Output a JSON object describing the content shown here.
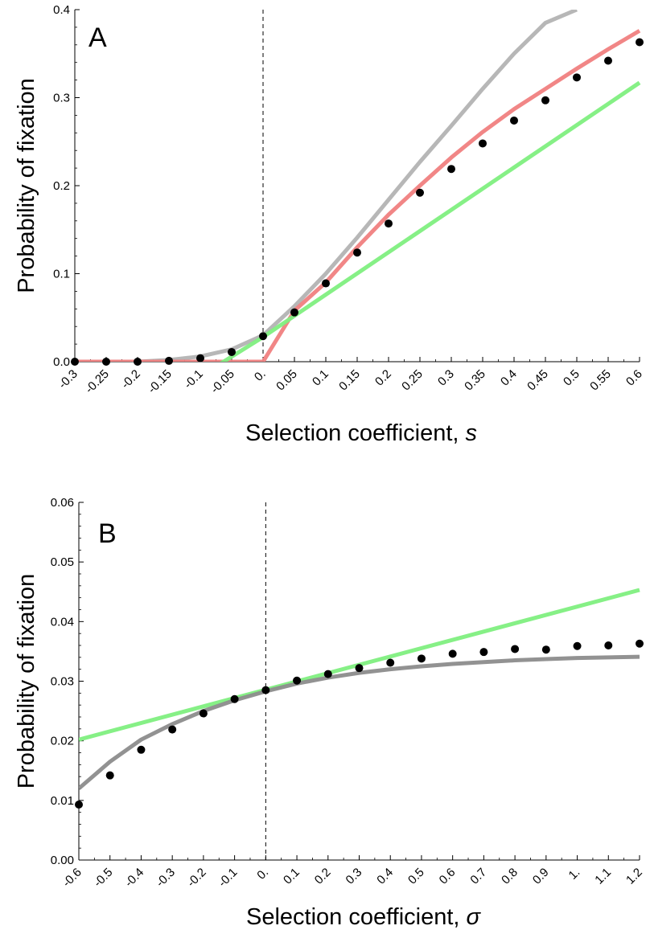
{
  "chart_data": [
    {
      "type": "line",
      "panel_label": "A",
      "xlabel": "Selection coefficient, ",
      "xlabel_var": "s",
      "ylabel": "Probability of fixation",
      "xlim": [
        -0.3,
        0.6
      ],
      "ylim": [
        0.0,
        0.4
      ],
      "grid": false,
      "x_ticks": [
        -0.3,
        -0.25,
        -0.2,
        -0.15,
        -0.1,
        -0.05,
        0.0,
        0.05,
        0.1,
        0.15,
        0.2,
        0.25,
        0.3,
        0.35,
        0.4,
        0.45,
        0.5,
        0.55,
        0.6
      ],
      "x_tick_labels": [
        "-0.3",
        "-0.25",
        "-0.2",
        "-0.15",
        "-0.1",
        "-0.05",
        "0.",
        "0.05",
        "0.1",
        "0.15",
        "0.2",
        "0.25",
        "0.3",
        "0.35",
        "0.4",
        "0.45",
        "0.5",
        "0.55",
        "0.6"
      ],
      "y_ticks": [
        0.0,
        0.1,
        0.2,
        0.3,
        0.4
      ],
      "y_tick_labels": [
        "0.0",
        "0.1",
        "0.2",
        "0.3",
        "0.4"
      ],
      "vline_x": 0.0,
      "series": [
        {
          "kind": "line",
          "color": "#b3b3b3",
          "x": [
            -0.3,
            -0.2,
            -0.15,
            -0.1,
            -0.05,
            0.0,
            0.05,
            0.1,
            0.15,
            0.2,
            0.25,
            0.3,
            0.35,
            0.4,
            0.45,
            0.5
          ],
          "y": [
            0.0,
            0.0,
            0.002,
            0.006,
            0.014,
            0.03,
            0.063,
            0.1,
            0.141,
            0.184,
            0.227,
            0.268,
            0.31,
            0.35,
            0.385,
            0.4
          ]
        },
        {
          "kind": "line",
          "color": "#f08080",
          "x": [
            -0.3,
            0.0,
            0.05,
            0.1,
            0.15,
            0.2,
            0.25,
            0.3,
            0.35,
            0.4,
            0.45,
            0.5,
            0.55,
            0.6
          ],
          "y": [
            0.0,
            0.0,
            0.058,
            0.09,
            0.13,
            0.167,
            0.2,
            0.232,
            0.261,
            0.287,
            0.31,
            0.333,
            0.355,
            0.376
          ]
        },
        {
          "kind": "line",
          "color": "#7fef7f",
          "x": [
            -0.09,
            0.0,
            0.6
          ],
          "y": [
            -0.012,
            0.028,
            0.317
          ]
        },
        {
          "kind": "points",
          "color": "#000000",
          "x": [
            -0.3,
            -0.25,
            -0.2,
            -0.15,
            -0.1,
            -0.05,
            0.0,
            0.05,
            0.1,
            0.15,
            0.2,
            0.25,
            0.3,
            0.35,
            0.4,
            0.45,
            0.5,
            0.55,
            0.6
          ],
          "y": [
            0.0,
            0.0,
            0.0,
            0.001,
            0.004,
            0.011,
            0.029,
            0.056,
            0.089,
            0.124,
            0.157,
            0.192,
            0.219,
            0.248,
            0.274,
            0.297,
            0.323,
            0.342,
            0.363
          ]
        }
      ]
    },
    {
      "type": "line",
      "panel_label": "B",
      "xlabel": "Selection coefficient, ",
      "xlabel_var": "σ",
      "ylabel": "Probability of fixation",
      "xlim": [
        -0.6,
        1.2
      ],
      "ylim": [
        0.0,
        0.06
      ],
      "grid": false,
      "x_ticks": [
        -0.6,
        -0.5,
        -0.4,
        -0.3,
        -0.2,
        -0.1,
        0.0,
        0.1,
        0.2,
        0.3,
        0.4,
        0.5,
        0.6,
        0.7,
        0.8,
        0.9,
        1.0,
        1.1,
        1.2
      ],
      "x_tick_labels": [
        "-0.6",
        "-0.5",
        "-0.4",
        "-0.3",
        "-0.2",
        "-0.1",
        "0.",
        "0.1",
        "0.2",
        "0.3",
        "0.4",
        "0.5",
        "0.6",
        "0.7",
        "0.8",
        "0.9",
        "1.",
        "1.1",
        "1.2"
      ],
      "y_ticks": [
        0.0,
        0.01,
        0.02,
        0.03,
        0.04,
        0.05,
        0.06
      ],
      "y_tick_labels": [
        "0.00",
        "0.01",
        "0.02",
        "0.03",
        "0.04",
        "0.05",
        "0.06"
      ],
      "vline_x": 0.0,
      "series": [
        {
          "kind": "line",
          "color": "#7fef7f",
          "x": [
            -0.6,
            1.2
          ],
          "y": [
            0.0202,
            0.0453
          ]
        },
        {
          "kind": "line",
          "color": "#8c8c8c",
          "x": [
            -0.6,
            -0.5,
            -0.4,
            -0.3,
            -0.2,
            -0.1,
            0.0,
            0.1,
            0.2,
            0.3,
            0.4,
            0.5,
            0.6,
            0.7,
            0.8,
            0.9,
            1.0,
            1.1,
            1.2
          ],
          "y": [
            0.012,
            0.0165,
            0.0202,
            0.0228,
            0.025,
            0.0268,
            0.0283,
            0.0296,
            0.0306,
            0.0314,
            0.032,
            0.0325,
            0.0329,
            0.0332,
            0.0335,
            0.0337,
            0.0339,
            0.034,
            0.0341
          ]
        },
        {
          "kind": "points",
          "color": "#000000",
          "x": [
            -0.6,
            -0.5,
            -0.4,
            -0.3,
            -0.2,
            -0.1,
            0.0,
            0.1,
            0.2,
            0.3,
            0.4,
            0.5,
            0.6,
            0.7,
            0.8,
            0.9,
            1.0,
            1.1,
            1.2
          ],
          "y": [
            0.0093,
            0.0142,
            0.0185,
            0.0219,
            0.0246,
            0.027,
            0.0285,
            0.0301,
            0.0312,
            0.0322,
            0.0331,
            0.0338,
            0.0346,
            0.0349,
            0.0354,
            0.0353,
            0.0359,
            0.036,
            0.0363
          ]
        }
      ]
    }
  ]
}
